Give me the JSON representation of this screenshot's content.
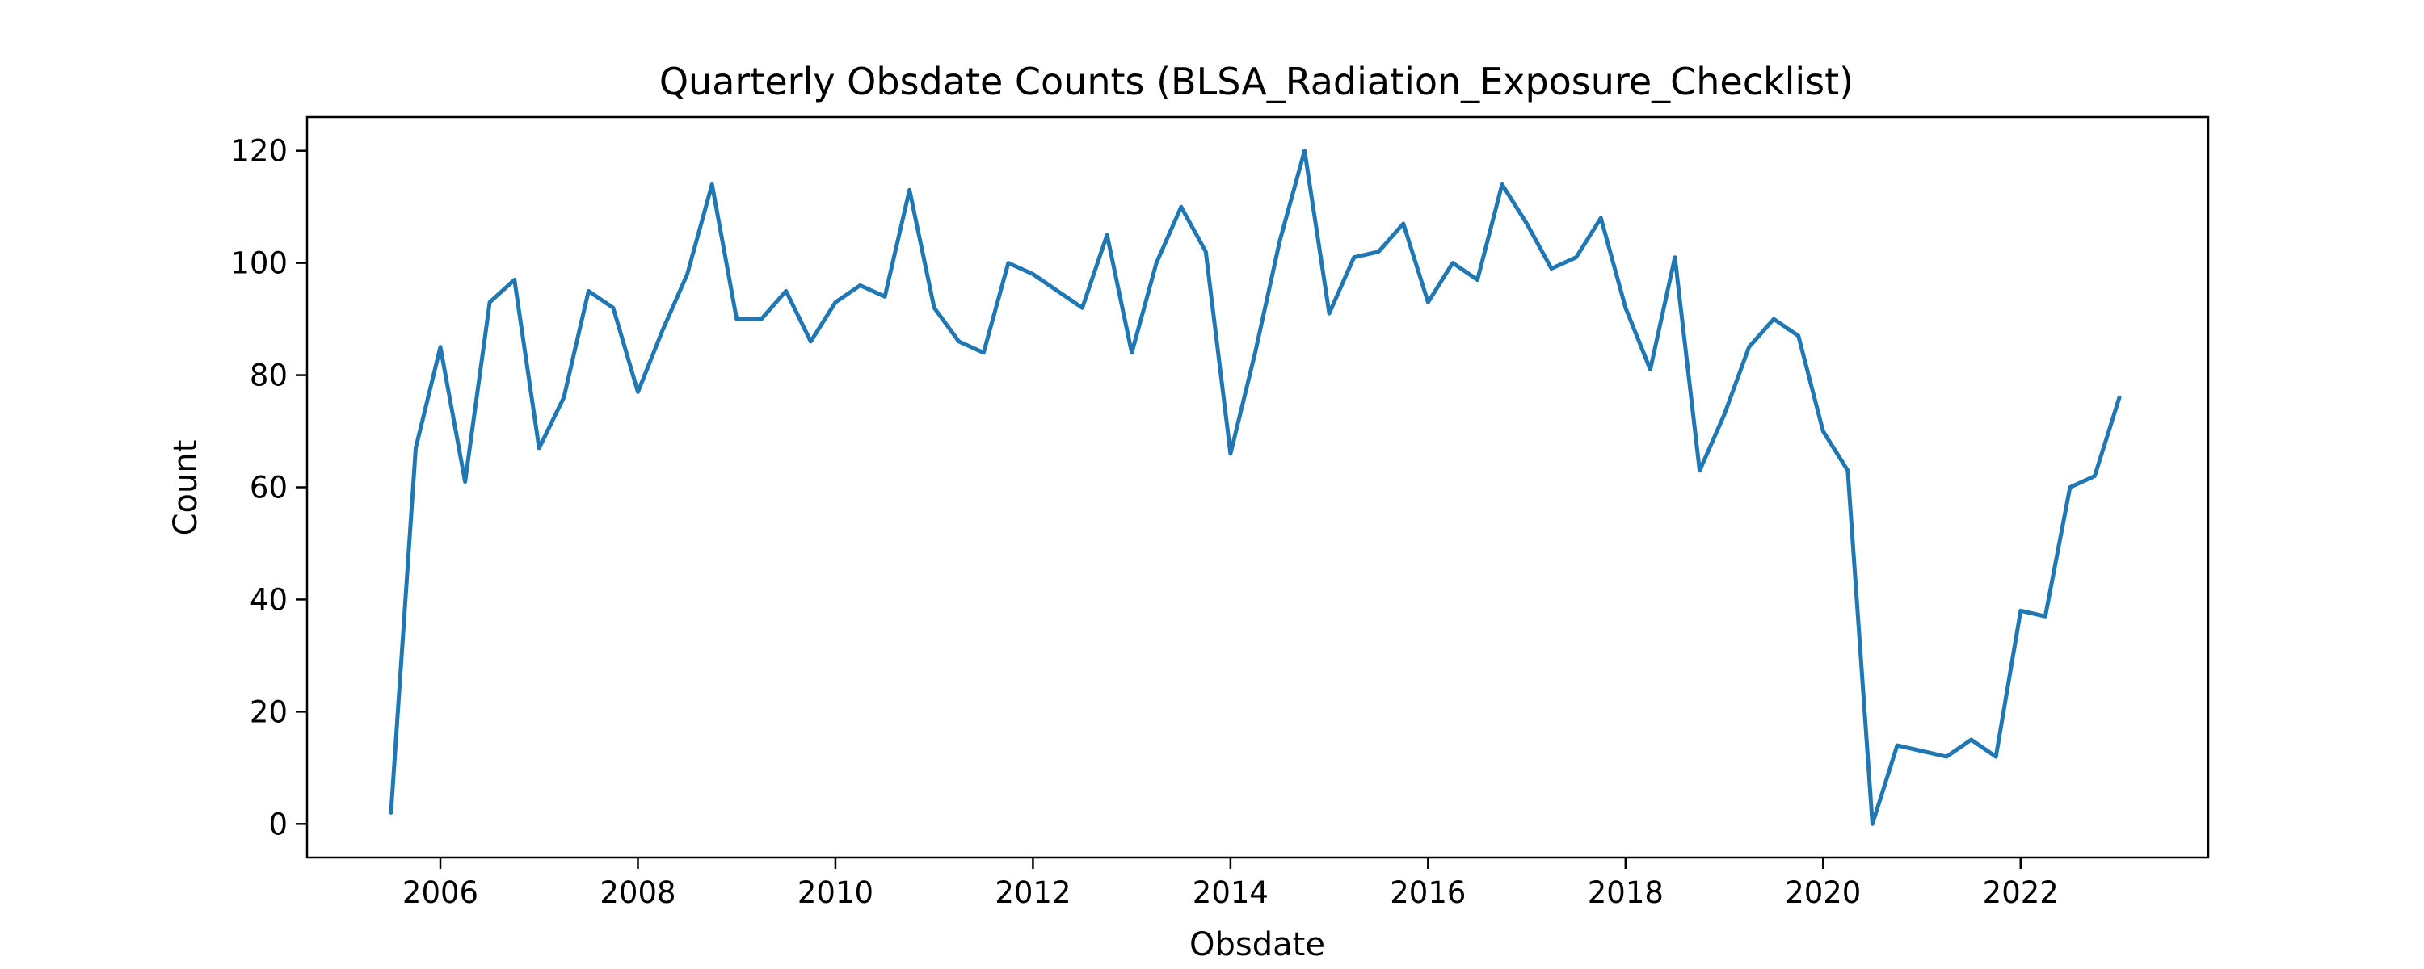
{
  "chart_data": {
    "type": "line",
    "title": "Quarterly Obsdate Counts (BLSA_Radiation_Exposure_Checklist)",
    "xlabel": "Obsdate",
    "ylabel": "Count",
    "xlim": [
      2004.65,
      2023.9
    ],
    "ylim": [
      -6,
      126
    ],
    "xticks": [
      2006,
      2008,
      2010,
      2012,
      2014,
      2016,
      2018,
      2020,
      2022
    ],
    "yticks": [
      0,
      20,
      40,
      60,
      80,
      100,
      120
    ],
    "grid": false,
    "legend": "none",
    "series": [
      {
        "color": "#1f77b4",
        "x": [
          2005.5,
          2005.75,
          2006.0,
          2006.25,
          2006.5,
          2006.75,
          2007.0,
          2007.25,
          2007.5,
          2007.75,
          2008.0,
          2008.25,
          2008.5,
          2008.75,
          2009.0,
          2009.25,
          2009.5,
          2009.75,
          2010.0,
          2010.25,
          2010.5,
          2010.75,
          2011.0,
          2011.25,
          2011.5,
          2011.75,
          2012.0,
          2012.25,
          2012.5,
          2012.75,
          2013.0,
          2013.25,
          2013.5,
          2013.75,
          2014.0,
          2014.25,
          2014.5,
          2014.75,
          2015.0,
          2015.25,
          2015.5,
          2015.75,
          2016.0,
          2016.25,
          2016.5,
          2016.75,
          2017.0,
          2017.25,
          2017.5,
          2017.75,
          2018.0,
          2018.25,
          2018.5,
          2018.75,
          2019.0,
          2019.25,
          2019.5,
          2019.75,
          2020.0,
          2020.25,
          2020.5,
          2020.75,
          2021.0,
          2021.25,
          2021.5,
          2021.75,
          2022.0,
          2022.25,
          2022.5,
          2022.75,
          2023.0
        ],
        "values": [
          2,
          67,
          85,
          61,
          93,
          97,
          67,
          76,
          95,
          92,
          77,
          88,
          98,
          114,
          90,
          90,
          95,
          86,
          93,
          96,
          94,
          113,
          92,
          86,
          84,
          100,
          98,
          95,
          92,
          105,
          84,
          100,
          110,
          102,
          66,
          84,
          104,
          120,
          91,
          101,
          102,
          107,
          93,
          100,
          97,
          114,
          107,
          99,
          101,
          108,
          92,
          81,
          101,
          63,
          73,
          85,
          90,
          87,
          70,
          63,
          0,
          14,
          13,
          12,
          15,
          12,
          38,
          37,
          60,
          62,
          76
        ]
      }
    ]
  }
}
